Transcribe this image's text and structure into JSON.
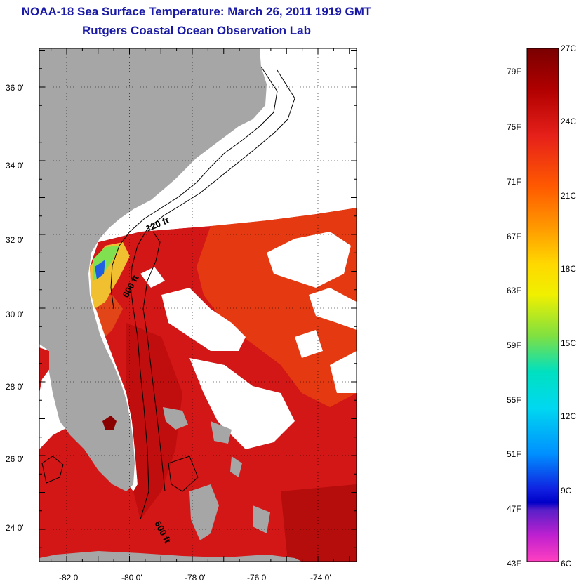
{
  "title": "NOAA-18 Sea Surface Temperature:  March 26, 2011 1919 GMT",
  "subtitle": "Rutgers Coastal Ocean Observation Lab",
  "map": {
    "lat_ticks": [
      "36 0'",
      "34 0'",
      "32 0'",
      "30 0'",
      "28 0'",
      "26 0'",
      "24 0'"
    ],
    "lat_values": [
      36,
      34,
      32,
      30,
      28,
      26,
      24
    ],
    "lon_ticks": [
      "-82 0'",
      "-80 0'",
      "-78 0'",
      "-76 0'",
      "-74 0'"
    ],
    "lon_values": [
      -82,
      -80,
      -78,
      -76,
      -74
    ],
    "contour_labels": [
      "120 ft",
      "600 ft",
      "600 ft"
    ],
    "colors": {
      "land": "#a6a6a6",
      "ocean_warm": "#d71212",
      "clouds": "#ffffff"
    }
  },
  "colorbar": {
    "fahrenheit": [
      "79F",
      "75F",
      "71F",
      "67F",
      "63F",
      "59F",
      "55F",
      "51F",
      "47F",
      "43F"
    ],
    "celsius": [
      "27C",
      "24C",
      "21C",
      "18C",
      "15C",
      "12C",
      "9C",
      "6C"
    ],
    "range_c": [
      6,
      27
    ]
  }
}
